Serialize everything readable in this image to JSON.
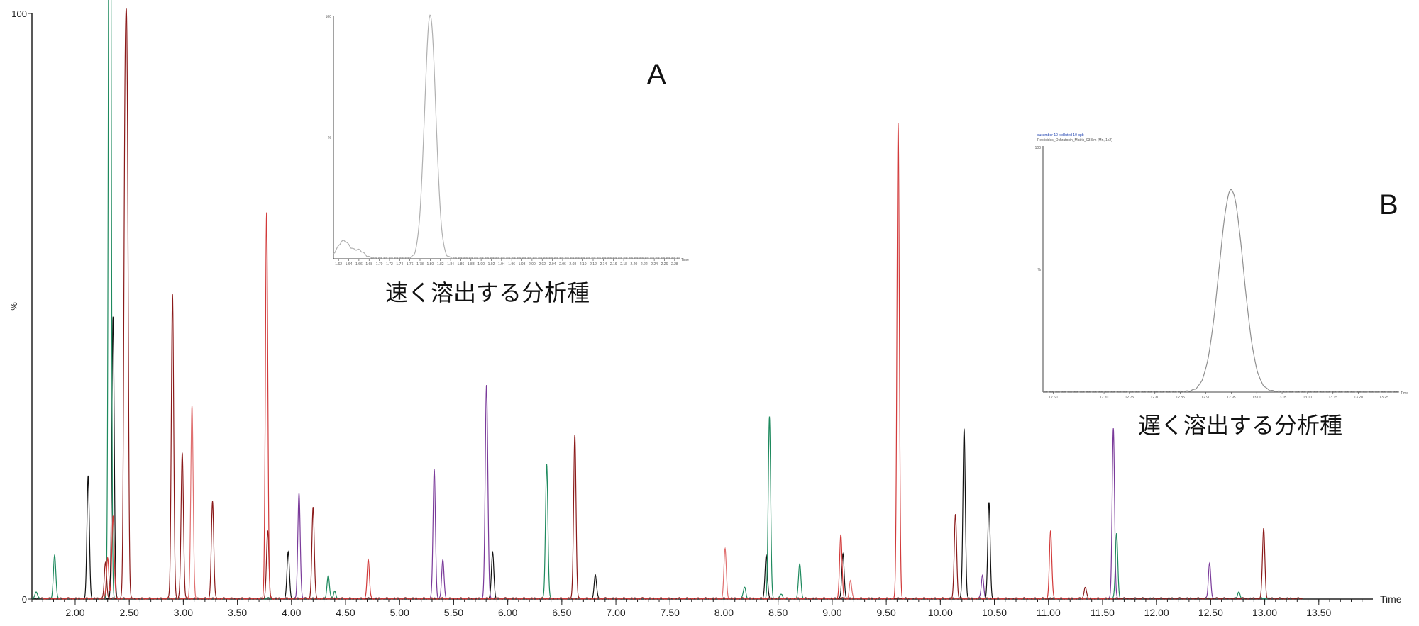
{
  "chart_data": [
    {
      "type": "line",
      "x_axis": {
        "label": "Time",
        "ticks": [
          "2.00",
          "2.50",
          "3.00",
          "3.50",
          "4.00",
          "4.50",
          "5.00",
          "5.50",
          "6.00",
          "6.50",
          "7.00",
          "7.50",
          "8.00",
          "8.50",
          "9.00",
          "9.50",
          "10.00",
          "10.50",
          "11.00",
          "11.50",
          "12.00",
          "12.50",
          "13.00",
          "13.50"
        ],
        "xlim": [
          1.6,
          14.0
        ]
      },
      "y_axis": {
        "label": "%",
        "top_tick": "100",
        "bottom_tick": "0",
        "ylim": [
          0,
          100
        ]
      },
      "grid": false,
      "colors": {
        "green": "#1e8a5e",
        "black": "#111111",
        "red": "#d23a3a",
        "darkred": "#8b1a1a",
        "purple": "#7a3a9a",
        "lightred": "#e07070"
      },
      "peaks": [
        {
          "x": 1.64,
          "h": 1.2,
          "c": "green"
        },
        {
          "x": 1.81,
          "h": 7.5,
          "c": "green"
        },
        {
          "x": 2.12,
          "h": 21,
          "c": "black"
        },
        {
          "x": 2.28,
          "h": 6,
          "c": "darkred"
        },
        {
          "x": 2.3,
          "h": 7,
          "c": "red"
        },
        {
          "x": 2.32,
          "h": 91,
          "c": "green"
        },
        {
          "x": 2.32,
          "h": 100,
          "c": "green"
        },
        {
          "x": 2.35,
          "h": 48,
          "c": "black"
        },
        {
          "x": 2.35,
          "h": 14,
          "c": "red"
        },
        {
          "x": 2.46,
          "h": 73,
          "c": "darkred"
        },
        {
          "x": 2.48,
          "h": 79,
          "c": "darkred"
        },
        {
          "x": 2.9,
          "h": 52,
          "c": "darkred"
        },
        {
          "x": 2.99,
          "h": 25,
          "c": "darkred"
        },
        {
          "x": 3.08,
          "h": 33,
          "c": "lightred"
        },
        {
          "x": 3.27,
          "h": 16.5,
          "c": "darkred"
        },
        {
          "x": 3.77,
          "h": 66,
          "c": "red"
        },
        {
          "x": 3.78,
          "h": 11.5,
          "c": "darkred"
        },
        {
          "x": 3.97,
          "h": 8,
          "c": "black"
        },
        {
          "x": 4.07,
          "h": 18,
          "c": "purple"
        },
        {
          "x": 4.2,
          "h": 15.5,
          "c": "darkred"
        },
        {
          "x": 4.34,
          "h": 4,
          "c": "green"
        },
        {
          "x": 4.4,
          "h": 1.2,
          "c": "green"
        },
        {
          "x": 4.71,
          "h": 6.5,
          "c": "red"
        },
        {
          "x": 5.32,
          "h": 22,
          "c": "purple"
        },
        {
          "x": 5.4,
          "h": 6.5,
          "c": "purple"
        },
        {
          "x": 5.8,
          "h": 25,
          "c": "purple"
        },
        {
          "x": 5.81,
          "h": 15,
          "c": "purple"
        },
        {
          "x": 5.86,
          "h": 8,
          "c": "black"
        },
        {
          "x": 6.36,
          "h": 23,
          "c": "green"
        },
        {
          "x": 6.62,
          "h": 28,
          "c": "darkred"
        },
        {
          "x": 6.81,
          "h": 4,
          "c": "black"
        },
        {
          "x": 8.01,
          "h": 8.5,
          "c": "lightred"
        },
        {
          "x": 8.19,
          "h": 2,
          "c": "green"
        },
        {
          "x": 8.39,
          "h": 7.5,
          "c": "black"
        },
        {
          "x": 8.42,
          "h": 31,
          "c": "green"
        },
        {
          "x": 8.53,
          "h": 0.8,
          "c": "green"
        },
        {
          "x": 8.7,
          "h": 6,
          "c": "green"
        },
        {
          "x": 9.08,
          "h": 11,
          "c": "red"
        },
        {
          "x": 9.1,
          "h": 7.5,
          "c": "black"
        },
        {
          "x": 9.17,
          "h": 3,
          "c": "lightred"
        },
        {
          "x": 9.61,
          "h": 81,
          "c": "red"
        },
        {
          "x": 10.14,
          "h": 14.5,
          "c": "darkred"
        },
        {
          "x": 10.22,
          "h": 29,
          "c": "black"
        },
        {
          "x": 10.39,
          "h": 4,
          "c": "purple"
        },
        {
          "x": 10.45,
          "h": 16.5,
          "c": "black"
        },
        {
          "x": 11.02,
          "h": 11.5,
          "c": "red"
        },
        {
          "x": 11.34,
          "h": 2,
          "c": "darkred"
        },
        {
          "x": 11.6,
          "h": 29,
          "c": "purple"
        },
        {
          "x": 11.63,
          "h": 11,
          "c": "green"
        },
        {
          "x": 12.49,
          "h": 6,
          "c": "purple"
        },
        {
          "x": 12.76,
          "h": 1.2,
          "c": "green"
        },
        {
          "x": 12.99,
          "h": 12,
          "c": "darkred"
        }
      ]
    },
    {
      "type": "line",
      "inset": "A",
      "caption": "速く溶出する分析種",
      "y_ticks": [
        "100",
        "%"
      ],
      "x_axis_end_label": "Time",
      "peak": {
        "x": 1.8,
        "h": 100
      },
      "small_hump": {
        "x": 1.63,
        "h": 7
      },
      "x_ticks": [
        "1.62",
        "1.64",
        "1.66",
        "1.68",
        "1.70",
        "1.72",
        "1.74",
        "1.76",
        "1.78",
        "1.80",
        "1.82",
        "1.84",
        "1.86",
        "1.88",
        "1.90",
        "1.92",
        "1.94",
        "1.96",
        "1.98",
        "2.00",
        "2.02",
        "2.04",
        "2.06",
        "2.08",
        "2.10",
        "2.12",
        "2.14",
        "2.16",
        "2.18",
        "2.20",
        "2.22",
        "2.24",
        "2.26",
        "2.28"
      ]
    },
    {
      "type": "line",
      "inset": "B",
      "caption": "遅く溶出する分析種",
      "header_lines": [
        "cucumber 10 x diluted 10 ppb",
        "Pesticides_Ochratoxin_Matrix_03 Sm (Mn, 1x2)"
      ],
      "y_ticks": [
        "100",
        "%"
      ],
      "x_axis_end_label": "Time",
      "peak": {
        "x": 12.95,
        "h": 100
      },
      "x_ticks": [
        "12.60",
        "12.70",
        "12.75",
        "12.80",
        "12.85",
        "12.90",
        "12.95",
        "13.00",
        "13.05",
        "13.10",
        "13.15",
        "13.20",
        "13.25"
      ]
    }
  ]
}
